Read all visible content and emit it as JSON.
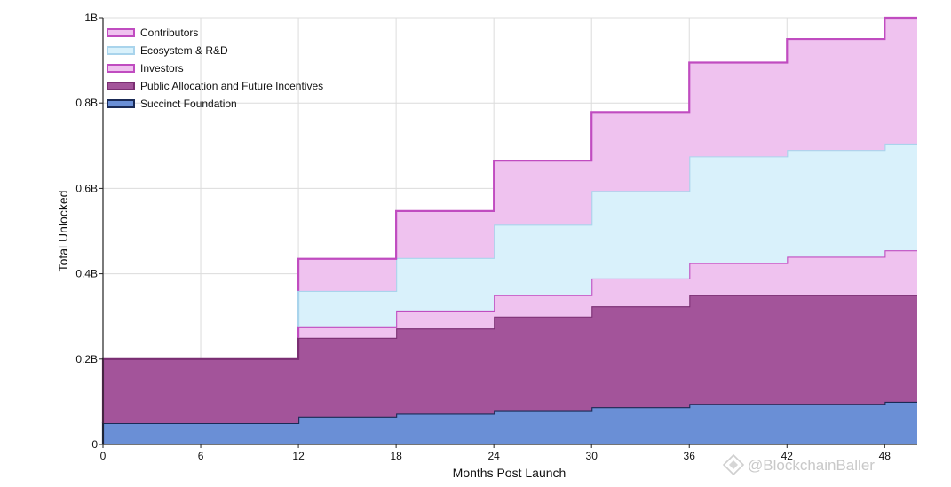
{
  "chart_data": {
    "type": "area",
    "step": true,
    "stacked": true,
    "xlabel": "Months Post Launch",
    "ylabel": "Total Unlocked",
    "xlim": [
      0,
      50
    ],
    "ylim": [
      0,
      1.0
    ],
    "x_ticks": [
      0,
      6,
      12,
      18,
      24,
      30,
      36,
      42,
      48
    ],
    "x_tick_labels": [
      "0",
      "6",
      "12",
      "18",
      "24",
      "30",
      "36",
      "42",
      "48"
    ],
    "y_ticks": [
      0,
      0.2,
      0.4,
      0.6,
      0.8,
      1.0
    ],
    "y_tick_labels": [
      "0",
      "0.2B",
      "0.4B",
      "0.6B",
      "0.8B",
      "1B"
    ],
    "grid": true,
    "legend_position": "top-left",
    "x": [
      0,
      6,
      12,
      18,
      24,
      30,
      36,
      42,
      48,
      50
    ],
    "series": [
      {
        "name": "Succinct Foundation",
        "fill": "#6a8fd6",
        "edge": "#1a2a55",
        "values": [
          0.05,
          0.05,
          0.065,
          0.072,
          0.08,
          0.087,
          0.095,
          0.095,
          0.1,
          0.1
        ]
      },
      {
        "name": "Public Allocation and Future Incentives",
        "fill": "#a3549a",
        "edge": "#7a2e72",
        "values": [
          0.15,
          0.15,
          0.185,
          0.2,
          0.22,
          0.237,
          0.255,
          0.255,
          0.25,
          0.25
        ]
      },
      {
        "name": "Investors",
        "fill": "#efc2ef",
        "edge": "#c04cc0",
        "values": [
          0,
          0,
          0.025,
          0.04,
          0.05,
          0.065,
          0.075,
          0.09,
          0.105,
          0.105
        ]
      },
      {
        "name": "Ecosystem & R&D",
        "fill": "#d9f1fb",
        "edge": "#a9d4ec",
        "values": [
          0,
          0,
          0.085,
          0.125,
          0.165,
          0.205,
          0.25,
          0.25,
          0.25,
          0.25
        ]
      },
      {
        "name": "Contributors",
        "fill": "#efc2ef",
        "edge": "#c04cc0",
        "values": [
          0,
          0,
          0.075,
          0.11,
          0.15,
          0.185,
          0.22,
          0.26,
          0.295,
          0.295
        ]
      }
    ],
    "legend_order": [
      "Contributors",
      "Ecosystem & R&D",
      "Investors",
      "Public Allocation and Future Incentives",
      "Succinct Foundation"
    ]
  },
  "watermark": {
    "text": "@BlockchainBaller",
    "icon": "binance-diamond-icon"
  }
}
